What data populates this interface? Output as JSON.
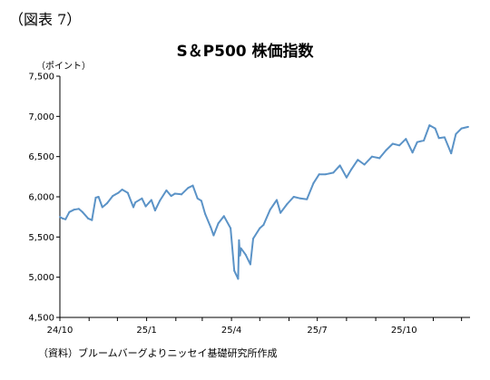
{
  "figure_label": "（図表 7）",
  "source_note": "（資料）ブルームバーグよりニッセイ基礎研究所作成",
  "colors": {
    "line": "#5b93c7",
    "axis": "#000000",
    "grid": "none"
  },
  "chart_data": {
    "type": "line",
    "title": "S＆P500 株価指数",
    "ylabel": "（ポイント）",
    "xlabel": "",
    "ylim": [
      4500,
      7500
    ],
    "yticks": [
      "4,500",
      "5,000",
      "5,500",
      "6,000",
      "6,500",
      "7,000",
      "7,500"
    ],
    "ytick_values": [
      4500,
      5000,
      5500,
      6000,
      6500,
      7000,
      7500
    ],
    "xticks": [
      "24/10",
      "25/1",
      "25/4",
      "25/7",
      "25/10"
    ],
    "xlim": [
      "2024-10-01",
      "2025-12-10"
    ],
    "grid": false,
    "legend": "none",
    "series": [
      {
        "x": [
          "2024-10-01",
          "2024-10-04",
          "2024-10-07",
          "2024-10-11",
          "2024-10-16",
          "2024-10-21",
          "2024-10-25",
          "2024-10-31",
          "2024-11-04",
          "2024-11-08",
          "2024-11-11",
          "2024-11-15",
          "2024-11-20",
          "2024-11-26",
          "2024-12-02",
          "2024-12-06",
          "2024-12-12",
          "2024-12-18",
          "2024-12-20",
          "2024-12-27",
          "2024-12-31",
          "2025-01-06",
          "2025-01-10",
          "2025-01-15",
          "2025-01-22",
          "2025-01-27",
          "2025-01-31",
          "2025-02-07",
          "2025-02-14",
          "2025-02-19",
          "2025-02-24",
          "2025-02-28",
          "2025-03-04",
          "2025-03-10",
          "2025-03-13",
          "2025-03-18",
          "2025-03-24",
          "2025-03-31",
          "2025-04-04",
          "2025-04-08",
          "2025-04-09",
          "2025-04-10",
          "2025-04-11",
          "2025-04-16",
          "2025-04-21",
          "2025-04-24",
          "2025-05-01",
          "2025-05-05",
          "2025-05-12",
          "2025-05-19",
          "2025-05-23",
          "2025-05-30",
          "2025-06-06",
          "2025-06-13",
          "2025-06-20",
          "2025-06-27",
          "2025-07-03",
          "2025-07-10",
          "2025-07-18",
          "2025-07-25",
          "2025-08-01",
          "2025-08-06",
          "2025-08-13",
          "2025-08-20",
          "2025-08-28",
          "2025-09-05",
          "2025-09-12",
          "2025-09-19",
          "2025-09-26",
          "2025-10-03",
          "2025-10-10",
          "2025-10-15",
          "2025-10-22",
          "2025-10-28",
          "2025-11-03",
          "2025-11-07",
          "2025-11-13",
          "2025-11-20",
          "2025-11-25",
          "2025-12-01",
          "2025-12-08"
        ],
        "values": [
          5750,
          5730,
          5720,
          5810,
          5840,
          5850,
          5810,
          5730,
          5710,
          5990,
          6000,
          5870,
          5920,
          6010,
          6050,
          6090,
          6050,
          5870,
          5930,
          5980,
          5880,
          5960,
          5830,
          5950,
          6080,
          6010,
          6040,
          6030,
          6110,
          6140,
          5980,
          5950,
          5790,
          5620,
          5520,
          5670,
          5760,
          5610,
          5080,
          4980,
          5460,
          5270,
          5360,
          5280,
          5160,
          5480,
          5610,
          5650,
          5840,
          5960,
          5800,
          5910,
          6000,
          5980,
          5970,
          6170,
          6280,
          6280,
          6300,
          6390,
          6240,
          6340,
          6460,
          6400,
          6500,
          6480,
          6580,
          6660,
          6640,
          6720,
          6550,
          6680,
          6700,
          6890,
          6850,
          6730,
          6740,
          6540,
          6780,
          6850,
          6870
        ]
      }
    ]
  }
}
